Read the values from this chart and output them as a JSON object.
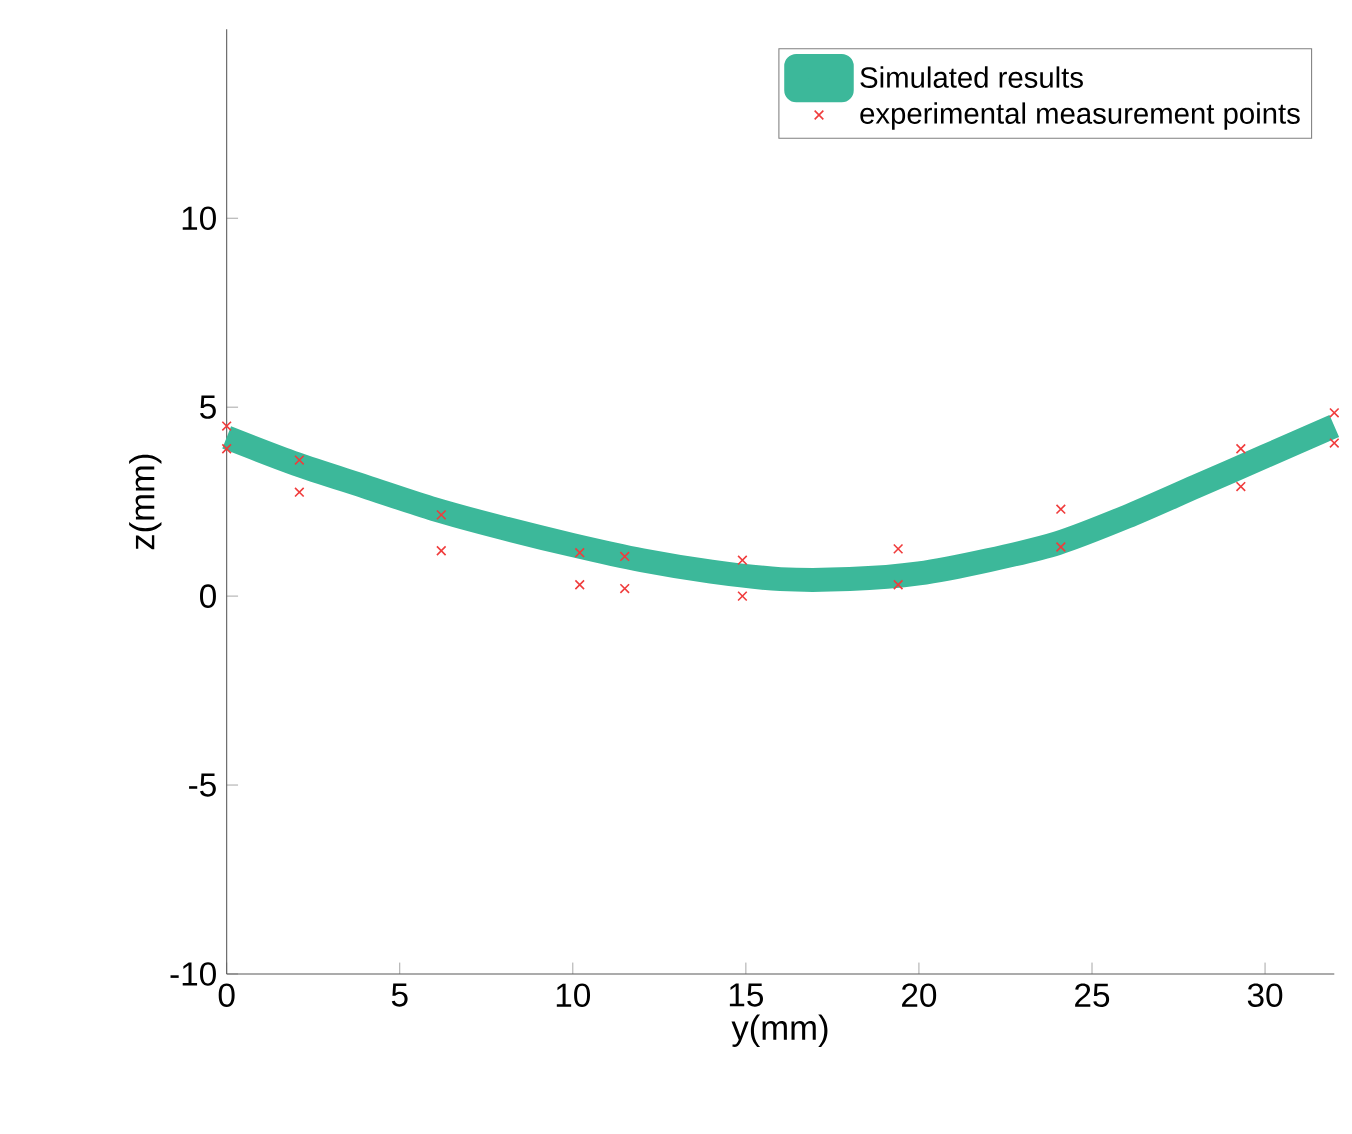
{
  "chart_data": {
    "type": "line",
    "xlabel": "y(mm)",
    "ylabel": "z(mm)",
    "xlim": [
      0,
      32
    ],
    "ylim": [
      -10,
      15
    ],
    "xticks": [
      0,
      5,
      10,
      15,
      20,
      25,
      30
    ],
    "yticks": [
      -10,
      -5,
      0,
      5,
      10
    ],
    "grid": false,
    "legend": "top right",
    "series": [
      {
        "name": "Simulated results",
        "color": "#3cb89a",
        "x": [
          0,
          2,
          4,
          6,
          8,
          10,
          12,
          14,
          16,
          18,
          20,
          22,
          24,
          26,
          28,
          30,
          32
        ],
        "values": [
          4.2,
          3.5,
          2.9,
          2.3,
          1.8,
          1.35,
          0.95,
          0.65,
          0.45,
          0.45,
          0.6,
          0.95,
          1.4,
          2.1,
          2.9,
          3.7,
          4.5
        ]
      },
      {
        "name": "experimental measurement points",
        "type": "scatter",
        "color": "#f03c3c",
        "marker": "cross",
        "x": [
          0,
          0,
          2.1,
          2.1,
          6.2,
          6.2,
          10.2,
          10.2,
          11.5,
          11.5,
          14.9,
          14.9,
          19.4,
          19.4,
          24.1,
          24.1,
          29.3,
          29.3,
          32,
          32
        ],
        "values": [
          4.5,
          3.9,
          3.6,
          2.75,
          2.15,
          1.2,
          1.15,
          0.3,
          1.05,
          0.2,
          0.95,
          0,
          1.25,
          0.3,
          2.3,
          1.3,
          3.9,
          2.9,
          4.85,
          4.05
        ]
      }
    ]
  }
}
